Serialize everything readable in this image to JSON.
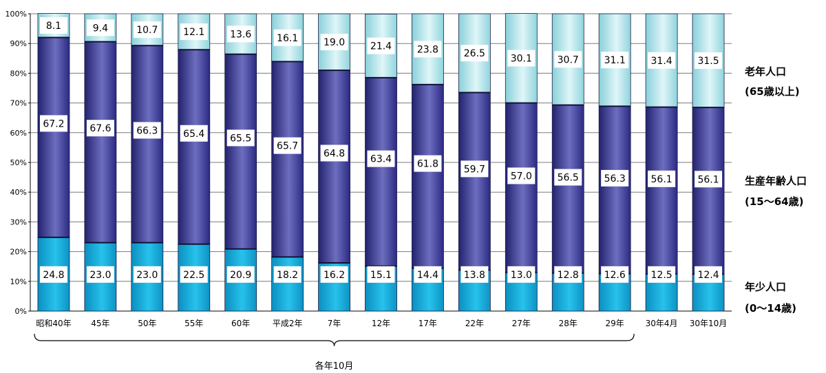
{
  "chart_data": {
    "type": "bar",
    "stacked": true,
    "categories": [
      "昭和40年",
      "45年",
      "50年",
      "55年",
      "60年",
      "平成2年",
      "7年",
      "12年",
      "17年",
      "22年",
      "27年",
      "28年",
      "29年",
      "30年4月",
      "30年10月"
    ],
    "series": [
      {
        "name": "年少人口",
        "name_sub": "(0〜14歳)",
        "color": "#1fb8e0",
        "labels": [
          "24.8",
          "23.0",
          "23.0",
          "22.5",
          "20.9",
          "18.2",
          "16.2",
          "15.1",
          "14.4",
          "13.8",
          "13.0",
          "12.8",
          "12.6",
          "12.5",
          "12.4"
        ],
        "values": [
          24.8,
          23.0,
          23.0,
          22.5,
          20.9,
          18.2,
          16.2,
          15.1,
          14.4,
          13.8,
          13.0,
          12.8,
          12.6,
          12.5,
          12.4
        ]
      },
      {
        "name": "生産年齢人口",
        "name_sub": "(15〜64歳)",
        "color": "#35369a",
        "labels": [
          "67.2",
          "67.6",
          "66.3",
          "65.4",
          "65.5",
          "65.7",
          "64.8",
          "63.4",
          "61.8",
          "59.7",
          "57.0",
          "56.5",
          "56.3",
          "56.1",
          "56.1"
        ],
        "values": [
          67.2,
          67.6,
          66.3,
          65.4,
          65.5,
          65.7,
          64.8,
          63.4,
          61.8,
          59.7,
          57.0,
          56.5,
          56.3,
          56.1,
          56.1
        ]
      },
      {
        "name": "老年人口",
        "name_sub": "(65歳以上)",
        "color": "#bfe9ee",
        "labels": [
          "8.1",
          "9.4",
          "10.7",
          "12.1",
          "13.6",
          "16.1",
          "19.0",
          "21.4",
          "23.8",
          "26.5",
          "30.1",
          "30.7",
          "31.1",
          "31.4",
          "31.5"
        ],
        "values": [
          8.1,
          9.4,
          10.7,
          12.1,
          13.6,
          16.1,
          19.0,
          21.4,
          23.8,
          26.5,
          30.1,
          30.7,
          31.1,
          31.4,
          31.5
        ]
      }
    ],
    "ylim": [
      0,
      100
    ],
    "yticks": [
      "0%",
      "10%",
      "20%",
      "30%",
      "40%",
      "50%",
      "60%",
      "70%",
      "80%",
      "90%",
      "100%"
    ],
    "grid": true,
    "brace_label": "各年10月",
    "brace_span": [
      "昭和40年",
      "29年"
    ]
  }
}
